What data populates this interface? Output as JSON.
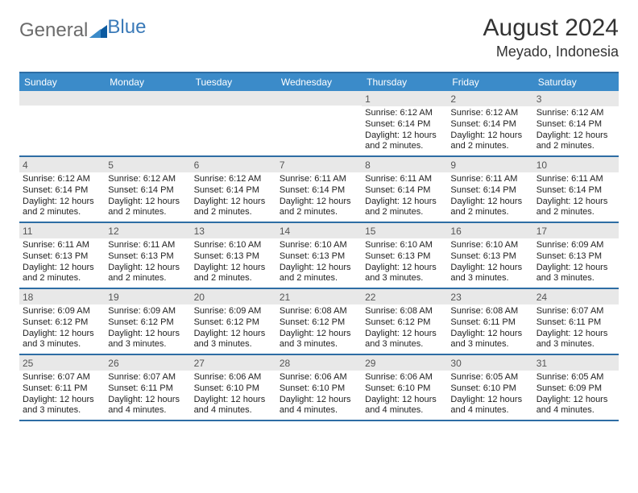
{
  "logo": {
    "part1": "General",
    "part2": "Blue"
  },
  "title": "August 2024",
  "location": "Meyado, Indonesia",
  "colors": {
    "header_bg": "#3b8bc9",
    "border": "#2e6da4",
    "daynum_bg": "#e8e8e8",
    "text": "#222222",
    "logo_gray": "#6b6b6b",
    "logo_blue": "#3a7ab8",
    "tri_dark": "#0b5aa0",
    "tri_light": "#3b8bc9"
  },
  "day_headers": [
    "Sunday",
    "Monday",
    "Tuesday",
    "Wednesday",
    "Thursday",
    "Friday",
    "Saturday"
  ],
  "weeks": [
    [
      {
        "blank": true
      },
      {
        "blank": true
      },
      {
        "blank": true
      },
      {
        "blank": true
      },
      {
        "num": "1",
        "sunrise": "6:12 AM",
        "sunset": "6:14 PM",
        "daylight": "12 hours and 2 minutes."
      },
      {
        "num": "2",
        "sunrise": "6:12 AM",
        "sunset": "6:14 PM",
        "daylight": "12 hours and 2 minutes."
      },
      {
        "num": "3",
        "sunrise": "6:12 AM",
        "sunset": "6:14 PM",
        "daylight": "12 hours and 2 minutes."
      }
    ],
    [
      {
        "num": "4",
        "sunrise": "6:12 AM",
        "sunset": "6:14 PM",
        "daylight": "12 hours and 2 minutes."
      },
      {
        "num": "5",
        "sunrise": "6:12 AM",
        "sunset": "6:14 PM",
        "daylight": "12 hours and 2 minutes."
      },
      {
        "num": "6",
        "sunrise": "6:12 AM",
        "sunset": "6:14 PM",
        "daylight": "12 hours and 2 minutes."
      },
      {
        "num": "7",
        "sunrise": "6:11 AM",
        "sunset": "6:14 PM",
        "daylight": "12 hours and 2 minutes."
      },
      {
        "num": "8",
        "sunrise": "6:11 AM",
        "sunset": "6:14 PM",
        "daylight": "12 hours and 2 minutes."
      },
      {
        "num": "9",
        "sunrise": "6:11 AM",
        "sunset": "6:14 PM",
        "daylight": "12 hours and 2 minutes."
      },
      {
        "num": "10",
        "sunrise": "6:11 AM",
        "sunset": "6:14 PM",
        "daylight": "12 hours and 2 minutes."
      }
    ],
    [
      {
        "num": "11",
        "sunrise": "6:11 AM",
        "sunset": "6:13 PM",
        "daylight": "12 hours and 2 minutes."
      },
      {
        "num": "12",
        "sunrise": "6:11 AM",
        "sunset": "6:13 PM",
        "daylight": "12 hours and 2 minutes."
      },
      {
        "num": "13",
        "sunrise": "6:10 AM",
        "sunset": "6:13 PM",
        "daylight": "12 hours and 2 minutes."
      },
      {
        "num": "14",
        "sunrise": "6:10 AM",
        "sunset": "6:13 PM",
        "daylight": "12 hours and 2 minutes."
      },
      {
        "num": "15",
        "sunrise": "6:10 AM",
        "sunset": "6:13 PM",
        "daylight": "12 hours and 3 minutes."
      },
      {
        "num": "16",
        "sunrise": "6:10 AM",
        "sunset": "6:13 PM",
        "daylight": "12 hours and 3 minutes."
      },
      {
        "num": "17",
        "sunrise": "6:09 AM",
        "sunset": "6:13 PM",
        "daylight": "12 hours and 3 minutes."
      }
    ],
    [
      {
        "num": "18",
        "sunrise": "6:09 AM",
        "sunset": "6:12 PM",
        "daylight": "12 hours and 3 minutes."
      },
      {
        "num": "19",
        "sunrise": "6:09 AM",
        "sunset": "6:12 PM",
        "daylight": "12 hours and 3 minutes."
      },
      {
        "num": "20",
        "sunrise": "6:09 AM",
        "sunset": "6:12 PM",
        "daylight": "12 hours and 3 minutes."
      },
      {
        "num": "21",
        "sunrise": "6:08 AM",
        "sunset": "6:12 PM",
        "daylight": "12 hours and 3 minutes."
      },
      {
        "num": "22",
        "sunrise": "6:08 AM",
        "sunset": "6:12 PM",
        "daylight": "12 hours and 3 minutes."
      },
      {
        "num": "23",
        "sunrise": "6:08 AM",
        "sunset": "6:11 PM",
        "daylight": "12 hours and 3 minutes."
      },
      {
        "num": "24",
        "sunrise": "6:07 AM",
        "sunset": "6:11 PM",
        "daylight": "12 hours and 3 minutes."
      }
    ],
    [
      {
        "num": "25",
        "sunrise": "6:07 AM",
        "sunset": "6:11 PM",
        "daylight": "12 hours and 3 minutes."
      },
      {
        "num": "26",
        "sunrise": "6:07 AM",
        "sunset": "6:11 PM",
        "daylight": "12 hours and 4 minutes."
      },
      {
        "num": "27",
        "sunrise": "6:06 AM",
        "sunset": "6:10 PM",
        "daylight": "12 hours and 4 minutes."
      },
      {
        "num": "28",
        "sunrise": "6:06 AM",
        "sunset": "6:10 PM",
        "daylight": "12 hours and 4 minutes."
      },
      {
        "num": "29",
        "sunrise": "6:06 AM",
        "sunset": "6:10 PM",
        "daylight": "12 hours and 4 minutes."
      },
      {
        "num": "30",
        "sunrise": "6:05 AM",
        "sunset": "6:10 PM",
        "daylight": "12 hours and 4 minutes."
      },
      {
        "num": "31",
        "sunrise": "6:05 AM",
        "sunset": "6:09 PM",
        "daylight": "12 hours and 4 minutes."
      }
    ]
  ],
  "labels": {
    "sunrise": "Sunrise: ",
    "sunset": "Sunset: ",
    "daylight": "Daylight: "
  }
}
